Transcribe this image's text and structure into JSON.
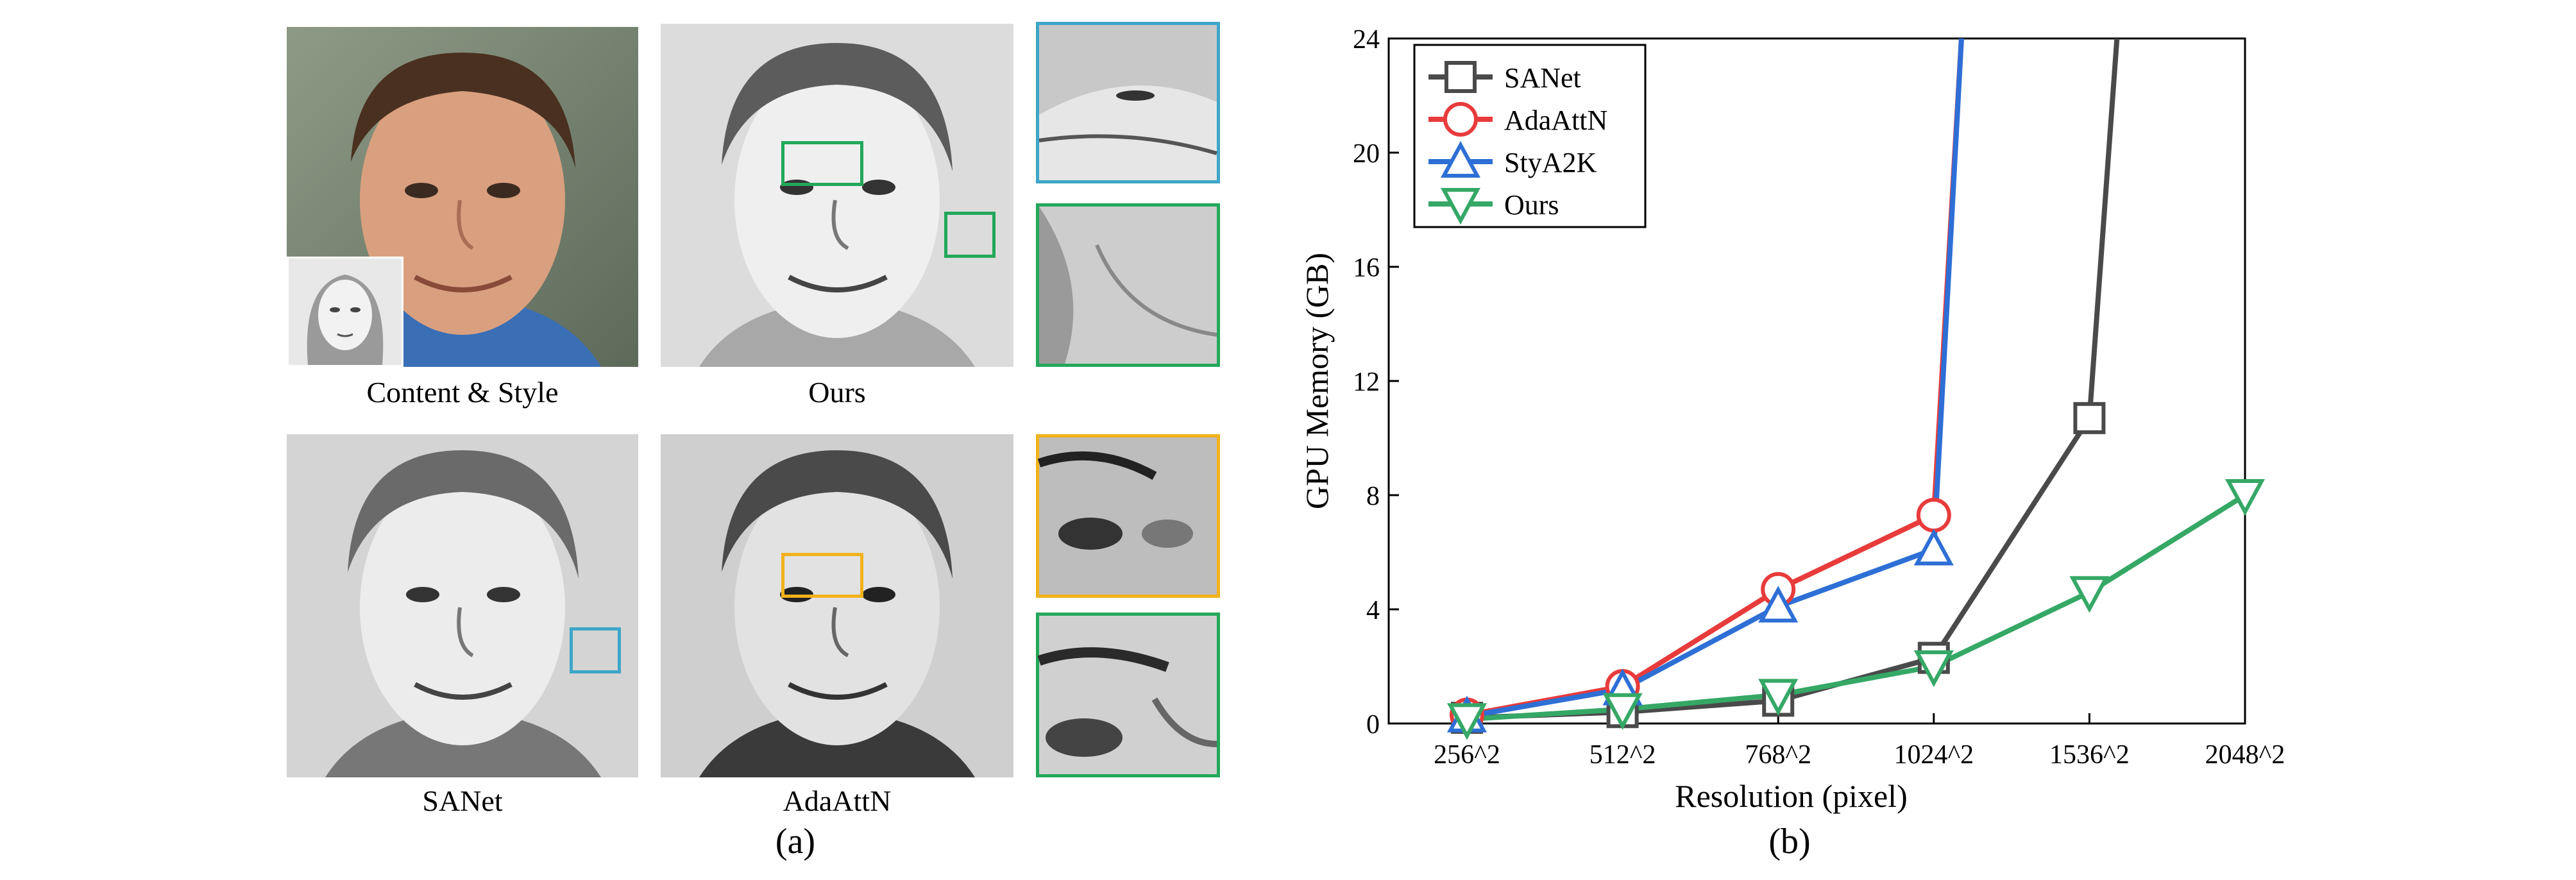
{
  "figure_a": {
    "captions": {
      "content_style": "Content & Style",
      "ours": "Ours",
      "sanet": "SANet",
      "adaattn": "AdaAttN"
    },
    "label": "(a)",
    "box_colors": {
      "green": "#22a85a",
      "blue": "#3ea6c8",
      "yellow": "#f2b21c"
    }
  },
  "figure_b": {
    "label": "(b)"
  },
  "chart_data": {
    "type": "line",
    "xlabel": "Resolution (pixel)",
    "ylabel": "GPU Memory (GB)",
    "categories": [
      "256^2",
      "512^2",
      "768^2",
      "1024^2",
      "1536^2",
      "2048^2"
    ],
    "ylim": [
      0,
      24
    ],
    "yticks": [
      0,
      4,
      8,
      12,
      16,
      20,
      24
    ],
    "legend_position": "top-left",
    "grid": false,
    "series": [
      {
        "name": "SANet",
        "color": "#4a4a4a",
        "marker": "square",
        "values": [
          0.2,
          0.4,
          0.8,
          2.3,
          10.7,
          null
        ],
        "overflow_after_index": 4
      },
      {
        "name": "AdaAttN",
        "color": "#e83b3b",
        "marker": "circle",
        "values": [
          0.3,
          1.3,
          4.7,
          7.3,
          null,
          null
        ],
        "overflow_after_index": 3
      },
      {
        "name": "StyA2K",
        "color": "#2e6fd6",
        "marker": "triangle-up",
        "values": [
          0.25,
          1.2,
          4.1,
          6.1,
          null,
          null
        ],
        "overflow_after_index": 3
      },
      {
        "name": "Ours",
        "color": "#35a866",
        "marker": "triangle-down",
        "values": [
          0.15,
          0.5,
          1.0,
          2.0,
          4.6,
          8.0
        ],
        "overflow_after_index": null
      }
    ]
  }
}
